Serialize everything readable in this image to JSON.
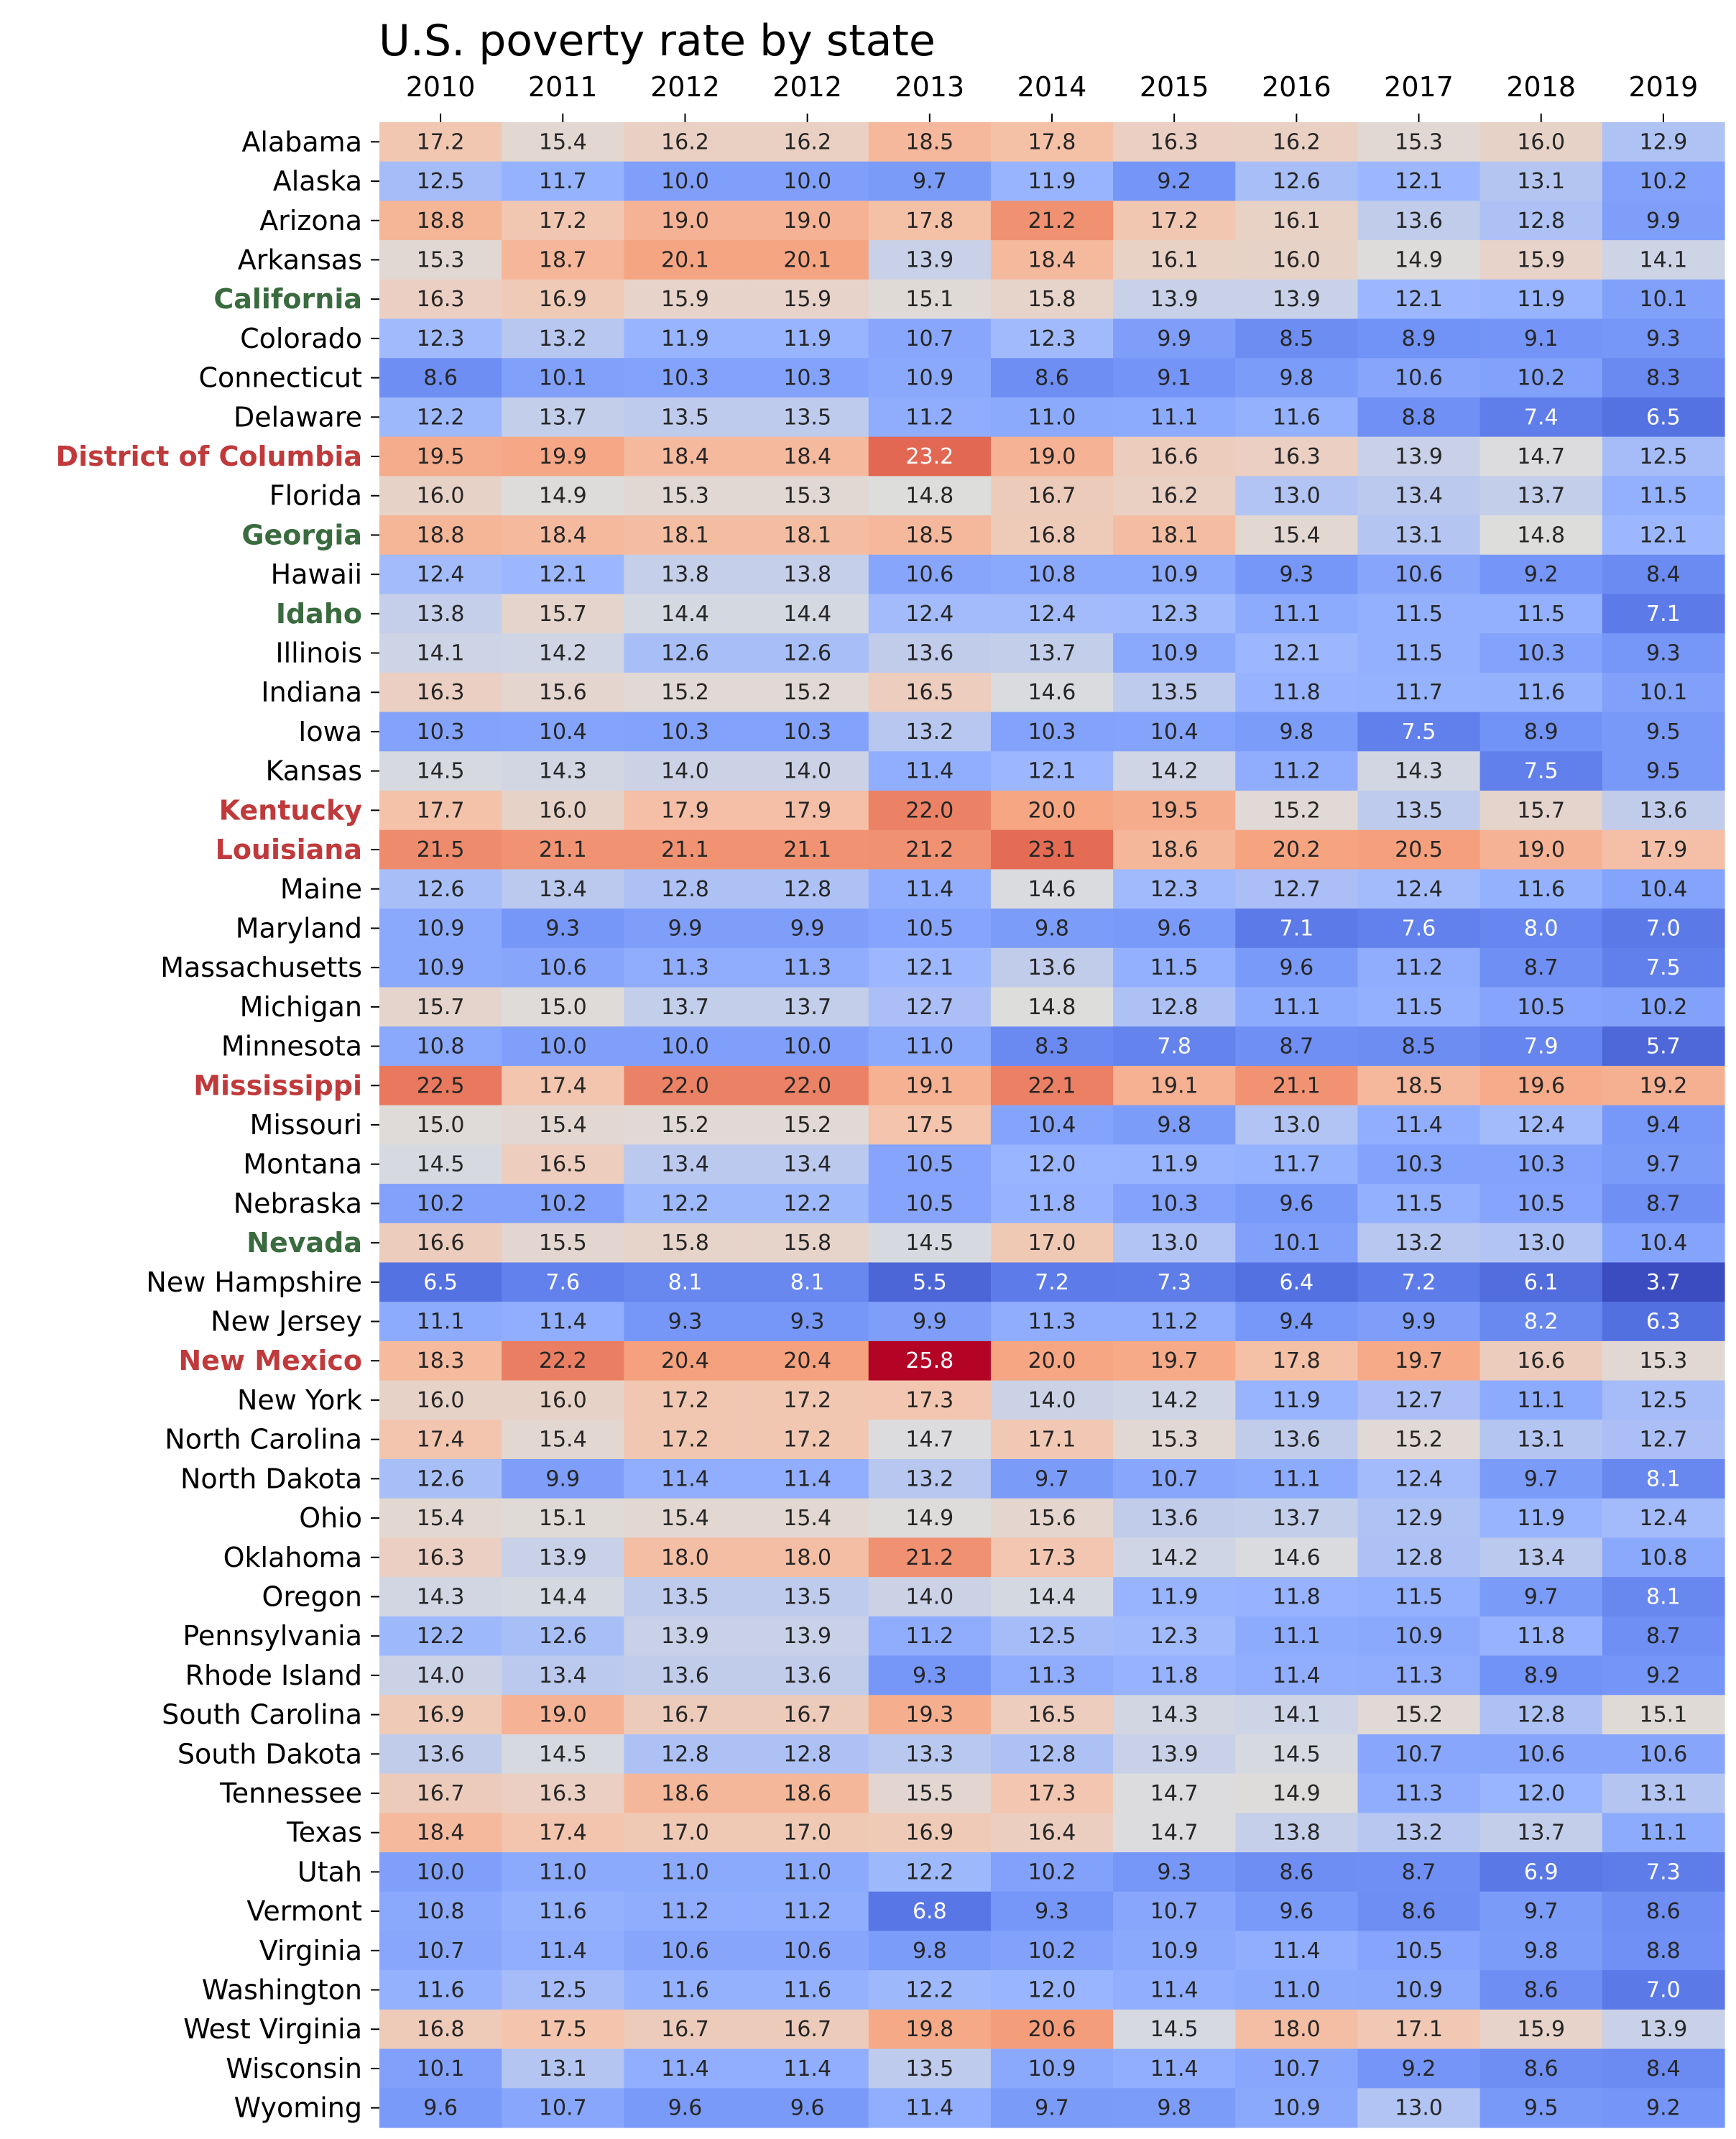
{
  "chart_data": {
    "type": "heatmap",
    "title": "U.S. poverty rate by state",
    "x_labels": [
      "2010",
      "2011",
      "2012",
      "2012",
      "2013",
      "2014",
      "2015",
      "2016",
      "2017",
      "2018",
      "2019"
    ],
    "x_axis_position": "top",
    "colormap": "coolwarm",
    "value_range": [
      3.7,
      25.8
    ],
    "grid": false,
    "label_colors": {
      "default": "#000000",
      "red": "#c0393b",
      "green": "#3a6b3f"
    },
    "rows": [
      {
        "label": "Alabama",
        "values": [
          17.2,
          15.4,
          16.2,
          16.2,
          18.5,
          17.8,
          16.3,
          16.2,
          15.3,
          16.0,
          12.9
        ]
      },
      {
        "label": "Alaska",
        "values": [
          12.5,
          11.7,
          10.0,
          10.0,
          9.7,
          11.9,
          9.2,
          12.6,
          12.1,
          13.1,
          10.2
        ]
      },
      {
        "label": "Arizona",
        "values": [
          18.8,
          17.2,
          19.0,
          19.0,
          17.8,
          21.2,
          17.2,
          16.1,
          13.6,
          12.8,
          9.9
        ]
      },
      {
        "label": "Arkansas",
        "values": [
          15.3,
          18.7,
          20.1,
          20.1,
          13.9,
          18.4,
          16.1,
          16.0,
          14.9,
          15.9,
          14.1
        ]
      },
      {
        "label": "California",
        "highlight": "green",
        "values": [
          16.3,
          16.9,
          15.9,
          15.9,
          15.1,
          15.8,
          13.9,
          13.9,
          12.1,
          11.9,
          10.1
        ]
      },
      {
        "label": "Colorado",
        "values": [
          12.3,
          13.2,
          11.9,
          11.9,
          10.7,
          12.3,
          9.9,
          8.5,
          8.9,
          9.1,
          9.3
        ]
      },
      {
        "label": "Connecticut",
        "values": [
          8.6,
          10.1,
          10.3,
          10.3,
          10.9,
          8.6,
          9.1,
          9.8,
          10.6,
          10.2,
          8.3
        ]
      },
      {
        "label": "Delaware",
        "values": [
          12.2,
          13.7,
          13.5,
          13.5,
          11.2,
          11.0,
          11.1,
          11.6,
          8.8,
          7.4,
          6.5
        ]
      },
      {
        "label": "District of Columbia",
        "highlight": "red",
        "values": [
          19.5,
          19.9,
          18.4,
          18.4,
          23.2,
          19.0,
          16.6,
          16.3,
          13.9,
          14.7,
          12.5
        ]
      },
      {
        "label": "Florida",
        "values": [
          16.0,
          14.9,
          15.3,
          15.3,
          14.8,
          16.7,
          16.2,
          13.0,
          13.4,
          13.7,
          11.5
        ]
      },
      {
        "label": "Georgia",
        "highlight": "green",
        "values": [
          18.8,
          18.4,
          18.1,
          18.1,
          18.5,
          16.8,
          18.1,
          15.4,
          13.1,
          14.8,
          12.1
        ]
      },
      {
        "label": "Hawaii",
        "values": [
          12.4,
          12.1,
          13.8,
          13.8,
          10.6,
          10.8,
          10.9,
          9.3,
          10.6,
          9.2,
          8.4
        ]
      },
      {
        "label": "Idaho",
        "highlight": "green",
        "values": [
          13.8,
          15.7,
          14.4,
          14.4,
          12.4,
          12.4,
          12.3,
          11.1,
          11.5,
          11.5,
          7.1
        ]
      },
      {
        "label": "Illinois",
        "values": [
          14.1,
          14.2,
          12.6,
          12.6,
          13.6,
          13.7,
          10.9,
          12.1,
          11.5,
          10.3,
          9.3
        ]
      },
      {
        "label": "Indiana",
        "values": [
          16.3,
          15.6,
          15.2,
          15.2,
          16.5,
          14.6,
          13.5,
          11.8,
          11.7,
          11.6,
          10.1
        ]
      },
      {
        "label": "Iowa",
        "values": [
          10.3,
          10.4,
          10.3,
          10.3,
          13.2,
          10.3,
          10.4,
          9.8,
          7.5,
          8.9,
          9.5
        ]
      },
      {
        "label": "Kansas",
        "values": [
          14.5,
          14.3,
          14.0,
          14.0,
          11.4,
          12.1,
          14.2,
          11.2,
          14.3,
          7.5,
          9.5
        ]
      },
      {
        "label": "Kentucky",
        "highlight": "red",
        "values": [
          17.7,
          16.0,
          17.9,
          17.9,
          22.0,
          20.0,
          19.5,
          15.2,
          13.5,
          15.7,
          13.6
        ]
      },
      {
        "label": "Louisiana",
        "highlight": "red",
        "values": [
          21.5,
          21.1,
          21.1,
          21.1,
          21.2,
          23.1,
          18.6,
          20.2,
          20.5,
          19.0,
          17.9
        ]
      },
      {
        "label": "Maine",
        "values": [
          12.6,
          13.4,
          12.8,
          12.8,
          11.4,
          14.6,
          12.3,
          12.7,
          12.4,
          11.6,
          10.4
        ]
      },
      {
        "label": "Maryland",
        "values": [
          10.9,
          9.3,
          9.9,
          9.9,
          10.5,
          9.8,
          9.6,
          7.1,
          7.6,
          8.0,
          7.0
        ]
      },
      {
        "label": "Massachusetts",
        "values": [
          10.9,
          10.6,
          11.3,
          11.3,
          12.1,
          13.6,
          11.5,
          9.6,
          11.2,
          8.7,
          7.5
        ]
      },
      {
        "label": "Michigan",
        "values": [
          15.7,
          15.0,
          13.7,
          13.7,
          12.7,
          14.8,
          12.8,
          11.1,
          11.5,
          10.5,
          10.2
        ]
      },
      {
        "label": "Minnesota",
        "values": [
          10.8,
          10.0,
          10.0,
          10.0,
          11.0,
          8.3,
          7.8,
          8.7,
          8.5,
          7.9,
          5.7
        ]
      },
      {
        "label": "Mississippi",
        "highlight": "red",
        "values": [
          22.5,
          17.4,
          22.0,
          22.0,
          19.1,
          22.1,
          19.1,
          21.1,
          18.5,
          19.6,
          19.2
        ]
      },
      {
        "label": "Missouri",
        "values": [
          15.0,
          15.4,
          15.2,
          15.2,
          17.5,
          10.4,
          9.8,
          13.0,
          11.4,
          12.4,
          9.4
        ]
      },
      {
        "label": "Montana",
        "values": [
          14.5,
          16.5,
          13.4,
          13.4,
          10.5,
          12.0,
          11.9,
          11.7,
          10.3,
          10.3,
          9.7
        ]
      },
      {
        "label": "Nebraska",
        "values": [
          10.2,
          10.2,
          12.2,
          12.2,
          10.5,
          11.8,
          10.3,
          9.6,
          11.5,
          10.5,
          8.7
        ]
      },
      {
        "label": "Nevada",
        "highlight": "green",
        "values": [
          16.6,
          15.5,
          15.8,
          15.8,
          14.5,
          17.0,
          13.0,
          10.1,
          13.2,
          13.0,
          10.4
        ]
      },
      {
        "label": "New Hampshire",
        "values": [
          6.5,
          7.6,
          8.1,
          8.1,
          5.5,
          7.2,
          7.3,
          6.4,
          7.2,
          6.1,
          3.7
        ]
      },
      {
        "label": "New Jersey",
        "values": [
          11.1,
          11.4,
          9.3,
          9.3,
          9.9,
          11.3,
          11.2,
          9.4,
          9.9,
          8.2,
          6.3
        ]
      },
      {
        "label": "New Mexico",
        "highlight": "red",
        "values": [
          18.3,
          22.2,
          20.4,
          20.4,
          25.8,
          20.0,
          19.7,
          17.8,
          19.7,
          16.6,
          15.3
        ]
      },
      {
        "label": "New York",
        "values": [
          16.0,
          16.0,
          17.2,
          17.2,
          17.3,
          14.0,
          14.2,
          11.9,
          12.7,
          11.1,
          12.5
        ]
      },
      {
        "label": "North Carolina",
        "values": [
          17.4,
          15.4,
          17.2,
          17.2,
          14.7,
          17.1,
          15.3,
          13.6,
          15.2,
          13.1,
          12.7
        ]
      },
      {
        "label": "North Dakota",
        "values": [
          12.6,
          9.9,
          11.4,
          11.4,
          13.2,
          9.7,
          10.7,
          11.1,
          12.4,
          9.7,
          8.1
        ]
      },
      {
        "label": "Ohio",
        "values": [
          15.4,
          15.1,
          15.4,
          15.4,
          14.9,
          15.6,
          13.6,
          13.7,
          12.9,
          11.9,
          12.4
        ]
      },
      {
        "label": "Oklahoma",
        "values": [
          16.3,
          13.9,
          18.0,
          18.0,
          21.2,
          17.3,
          14.2,
          14.6,
          12.8,
          13.4,
          10.8
        ]
      },
      {
        "label": "Oregon",
        "values": [
          14.3,
          14.4,
          13.5,
          13.5,
          14.0,
          14.4,
          11.9,
          11.8,
          11.5,
          9.7,
          8.1
        ]
      },
      {
        "label": "Pennsylvania",
        "values": [
          12.2,
          12.6,
          13.9,
          13.9,
          11.2,
          12.5,
          12.3,
          11.1,
          10.9,
          11.8,
          8.7
        ]
      },
      {
        "label": "Rhode Island",
        "values": [
          14.0,
          13.4,
          13.6,
          13.6,
          9.3,
          11.3,
          11.8,
          11.4,
          11.3,
          8.9,
          9.2
        ]
      },
      {
        "label": "South Carolina",
        "values": [
          16.9,
          19.0,
          16.7,
          16.7,
          19.3,
          16.5,
          14.3,
          14.1,
          15.2,
          12.8,
          15.1
        ]
      },
      {
        "label": "South Dakota",
        "values": [
          13.6,
          14.5,
          12.8,
          12.8,
          13.3,
          12.8,
          13.9,
          14.5,
          10.7,
          10.6,
          10.6
        ]
      },
      {
        "label": "Tennessee",
        "values": [
          16.7,
          16.3,
          18.6,
          18.6,
          15.5,
          17.3,
          14.7,
          14.9,
          11.3,
          12.0,
          13.1
        ]
      },
      {
        "label": "Texas",
        "values": [
          18.4,
          17.4,
          17.0,
          17.0,
          16.9,
          16.4,
          14.7,
          13.8,
          13.2,
          13.7,
          11.1
        ]
      },
      {
        "label": "Utah",
        "values": [
          10.0,
          11.0,
          11.0,
          11.0,
          12.2,
          10.2,
          9.3,
          8.6,
          8.7,
          6.9,
          7.3
        ]
      },
      {
        "label": "Vermont",
        "values": [
          10.8,
          11.6,
          11.2,
          11.2,
          6.8,
          9.3,
          10.7,
          9.6,
          8.6,
          9.7,
          8.6
        ]
      },
      {
        "label": "Virginia",
        "values": [
          10.7,
          11.4,
          10.6,
          10.6,
          9.8,
          10.2,
          10.9,
          11.4,
          10.5,
          9.8,
          8.8
        ]
      },
      {
        "label": "Washington",
        "values": [
          11.6,
          12.5,
          11.6,
          11.6,
          12.2,
          12.0,
          11.4,
          11.0,
          10.9,
          8.6,
          7.0
        ]
      },
      {
        "label": "West Virginia",
        "values": [
          16.8,
          17.5,
          16.7,
          16.7,
          19.8,
          20.6,
          14.5,
          18.0,
          17.1,
          15.9,
          13.9
        ]
      },
      {
        "label": "Wisconsin",
        "values": [
          10.1,
          13.1,
          11.4,
          11.4,
          13.5,
          10.9,
          11.4,
          10.7,
          9.2,
          8.6,
          8.4
        ]
      },
      {
        "label": "Wyoming",
        "values": [
          9.6,
          10.7,
          9.6,
          9.6,
          11.4,
          9.7,
          9.8,
          10.9,
          13.0,
          9.5,
          9.2
        ]
      }
    ]
  }
}
